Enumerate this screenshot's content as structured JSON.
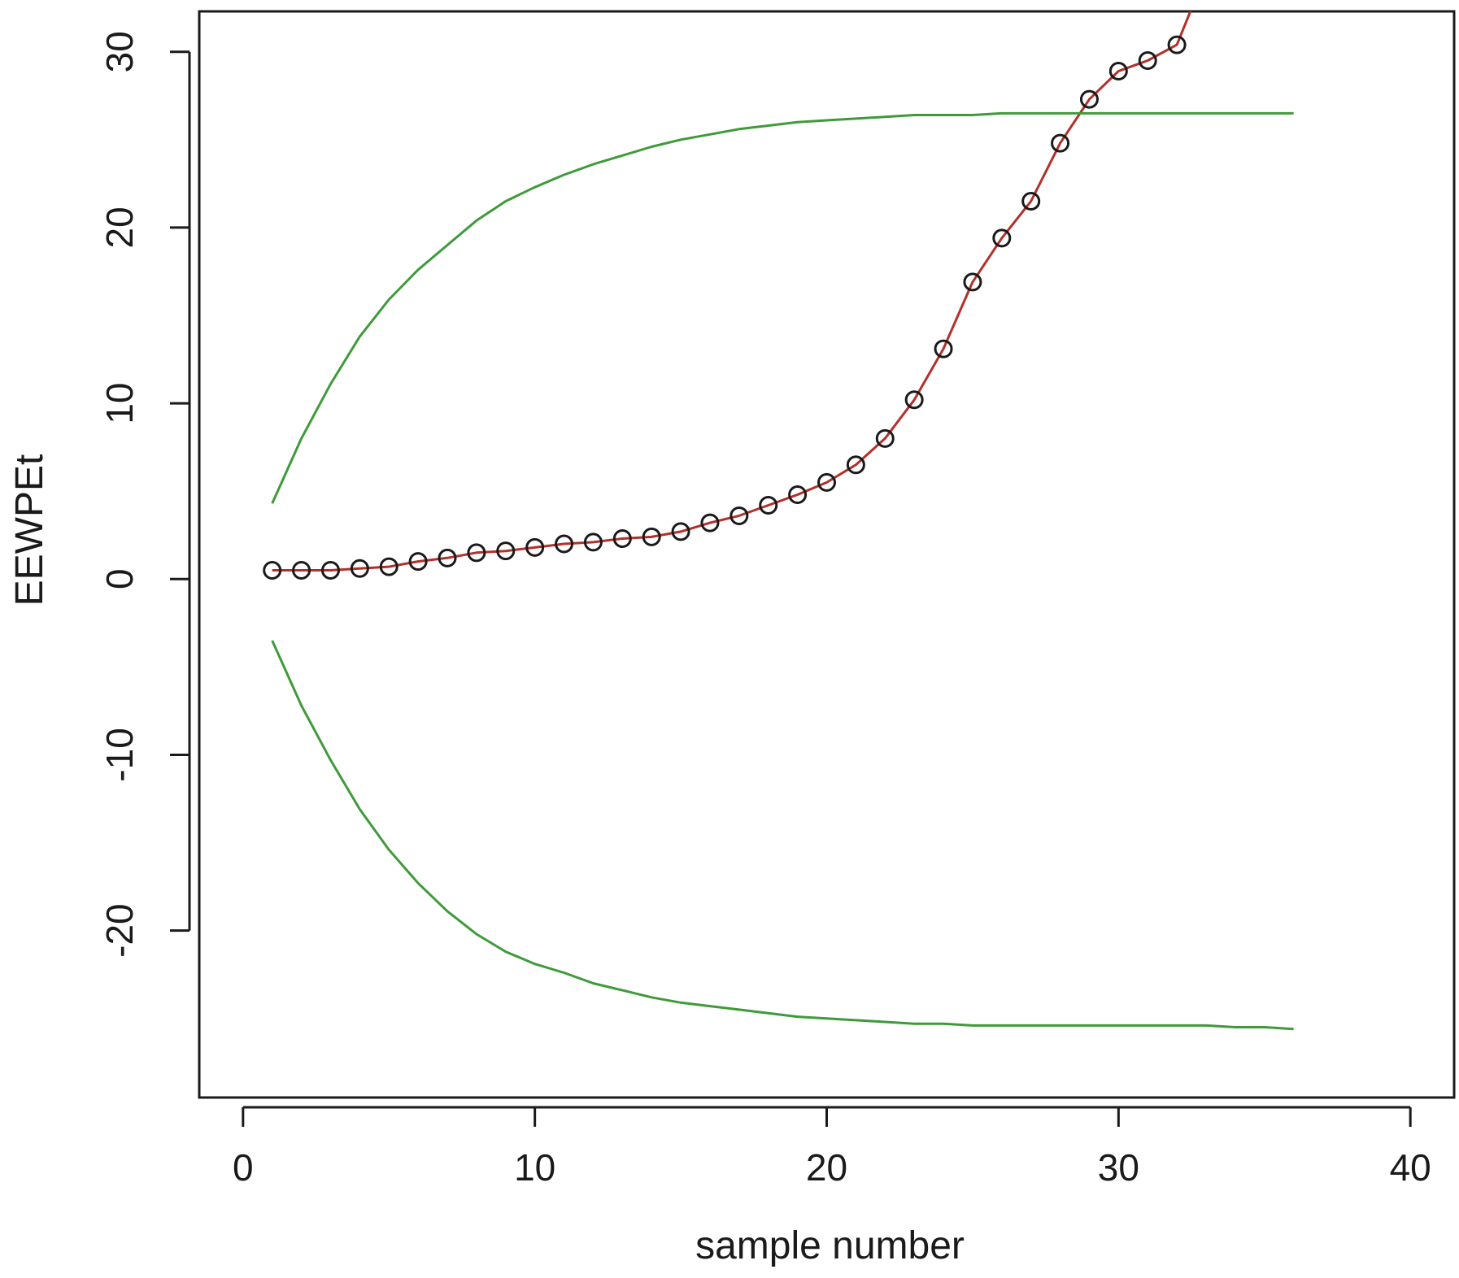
{
  "chart_data": {
    "type": "line",
    "title": "",
    "xlabel": "sample number",
    "ylabel": "EEWPEt",
    "xlim": [
      -1.5,
      41.5
    ],
    "ylim": [
      -29.5,
      32.3
    ],
    "x_ticks": [
      0,
      10,
      20,
      30,
      40
    ],
    "y_ticks": [
      -20,
      -10,
      0,
      10,
      20,
      30
    ],
    "grid": false,
    "legend": "none",
    "series": [
      {
        "role": "statistic",
        "line_color": "#b3302a",
        "marker": "open-circle",
        "marker_color": "#1a1a1a",
        "x": [
          1,
          2,
          3,
          4,
          5,
          6,
          7,
          8,
          9,
          10,
          11,
          12,
          13,
          14,
          15,
          16,
          17,
          18,
          19,
          20,
          21,
          22,
          23,
          24,
          25,
          26,
          27,
          28,
          29,
          30,
          31,
          32,
          33
        ],
        "y": [
          0.5,
          0.5,
          0.5,
          0.6,
          0.7,
          1.0,
          1.2,
          1.5,
          1.6,
          1.8,
          2.0,
          2.1,
          2.3,
          2.4,
          2.7,
          3.2,
          3.6,
          4.2,
          4.8,
          5.5,
          6.5,
          8.0,
          10.2,
          13.1,
          16.9,
          19.4,
          21.5,
          24.8,
          27.3,
          28.9,
          29.5,
          30.4,
          34.5
        ],
        "marker_count": 32
      },
      {
        "role": "upper-limit",
        "line_color": "#3f9a3a",
        "x": [
          1,
          2,
          3,
          4,
          5,
          6,
          7,
          8,
          9,
          10,
          11,
          12,
          13,
          14,
          15,
          16,
          17,
          18,
          19,
          20,
          21,
          22,
          23,
          24,
          25,
          26,
          27,
          28,
          29,
          30,
          31,
          32,
          33,
          34,
          35,
          36
        ],
        "y": [
          4.3,
          8.0,
          11.1,
          13.8,
          15.9,
          17.6,
          19.0,
          20.4,
          21.5,
          22.3,
          23.0,
          23.6,
          24.1,
          24.6,
          25.0,
          25.3,
          25.6,
          25.8,
          26.0,
          26.1,
          26.2,
          26.3,
          26.4,
          26.4,
          26.4,
          26.5,
          26.5,
          26.5,
          26.5,
          26.5,
          26.5,
          26.5,
          26.5,
          26.5,
          26.5,
          26.5
        ]
      },
      {
        "role": "lower-limit",
        "line_color": "#3f9a3a",
        "x": [
          1,
          2,
          3,
          4,
          5,
          6,
          7,
          8,
          9,
          10,
          11,
          12,
          13,
          14,
          15,
          16,
          17,
          18,
          19,
          20,
          21,
          22,
          23,
          24,
          25,
          26,
          27,
          28,
          29,
          30,
          31,
          32,
          33,
          34,
          35,
          36
        ],
        "y": [
          -3.5,
          -7.2,
          -10.3,
          -13.1,
          -15.4,
          -17.3,
          -18.9,
          -20.2,
          -21.2,
          -21.9,
          -22.4,
          -23.0,
          -23.4,
          -23.8,
          -24.1,
          -24.3,
          -24.5,
          -24.7,
          -24.9,
          -25.0,
          -25.1,
          -25.2,
          -25.3,
          -25.3,
          -25.4,
          -25.4,
          -25.4,
          -25.4,
          -25.4,
          -25.4,
          -25.4,
          -25.4,
          -25.4,
          -25.5,
          -25.5,
          -25.6
        ]
      }
    ]
  }
}
